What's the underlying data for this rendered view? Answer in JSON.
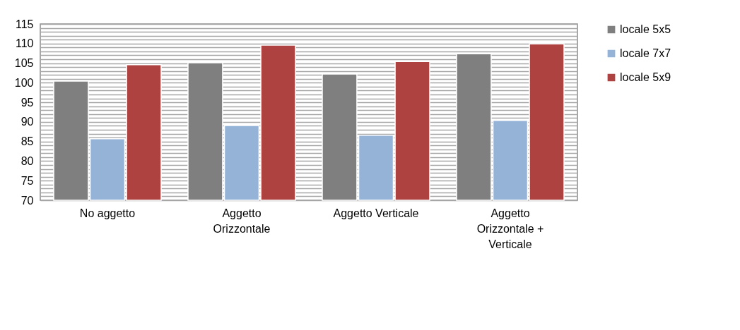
{
  "chart_data": {
    "type": "bar",
    "categories": [
      "No aggetto",
      "Aggetto Orizzontale",
      "Aggetto Verticale",
      "Aggetto Orizzontale + Verticale"
    ],
    "series": [
      {
        "name": "locale 5x5",
        "color": "#7f7f7f",
        "values": [
          100.4,
          105.1,
          102.2,
          107.4
        ]
      },
      {
        "name": "locale 7x7",
        "color": "#95b3d7",
        "values": [
          85.7,
          89.1,
          86.6,
          90.4
        ]
      },
      {
        "name": "locale 5x9",
        "color": "#ae4240",
        "values": [
          104.6,
          109.6,
          105.4,
          109.9
        ]
      }
    ],
    "ylim": [
      70,
      115
    ],
    "yticks": [
      70,
      {
        "value": 71,
        "label": null
      },
      {
        "value": 72,
        "label": null
      },
      {
        "value": 73,
        "label": null
      },
      {
        "value": 74,
        "label": null
      },
      75,
      {
        "value": 76,
        "label": null
      },
      {
        "value": 77,
        "label": null
      },
      {
        "value": 78,
        "label": null
      },
      {
        "value": 79,
        "label": null
      },
      80,
      {
        "value": 81,
        "label": null
      },
      {
        "value": 82,
        "label": null
      },
      {
        "value": 83,
        "label": null
      },
      {
        "value": 84,
        "label": null
      },
      85,
      {
        "value": 86,
        "label": null
      },
      {
        "value": 87,
        "label": null
      },
      {
        "value": 88,
        "label": null
      },
      {
        "value": 89,
        "label": null
      },
      90,
      {
        "value": 91,
        "label": null
      },
      {
        "value": 92,
        "label": null
      },
      {
        "value": 93,
        "label": null
      },
      {
        "value": 94,
        "label": null
      },
      95,
      {
        "value": 96,
        "label": null
      },
      {
        "value": 97,
        "label": null
      },
      {
        "value": 98,
        "label": null
      },
      {
        "value": 99,
        "label": null
      },
      100,
      {
        "value": 101,
        "label": null
      },
      {
        "value": 102,
        "label": null
      },
      {
        "value": 103,
        "label": null
      },
      {
        "value": 104,
        "label": null
      },
      105,
      {
        "value": 106,
        "label": null
      },
      {
        "value": 107,
        "label": null
      },
      {
        "value": 108,
        "label": null
      },
      {
        "value": 109,
        "label": null
      },
      110,
      {
        "value": 111,
        "label": null
      },
      {
        "value": 112,
        "label": null
      },
      {
        "value": 113,
        "label": null
      },
      {
        "value": 114,
        "label": null
      },
      115
    ],
    "grid": "y",
    "legend": "right"
  }
}
